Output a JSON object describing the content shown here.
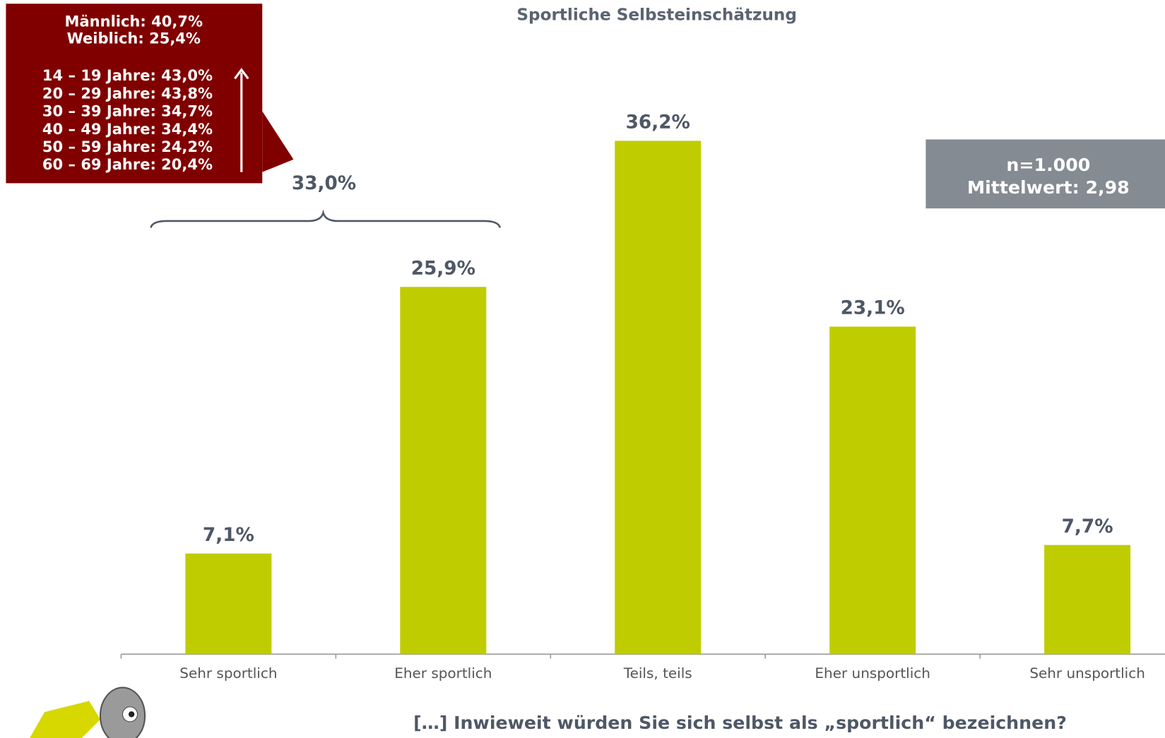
{
  "chart_data": {
    "type": "bar",
    "title": "Sportliche Selbsteinschätzung",
    "categories": [
      "Sehr sportlich",
      "Eher sportlich",
      "Teils, teils",
      "Eher unsportlich",
      "Sehr unsportlich"
    ],
    "values": [
      7.1,
      25.9,
      36.2,
      23.1,
      7.7
    ],
    "value_labels": [
      "7,1%",
      "25,9%",
      "36,2%",
      "23,1%",
      "7,7%"
    ],
    "color": "#bfcd00",
    "annotations": {
      "bracket_label": "33,0%",
      "callout_lines": [
        "Männlich: 40,7%",
        "Weiblich: 25,4%",
        "14 – 19 Jahre: 43,0%",
        "20 – 29 Jahre: 43,8%",
        "30 – 39 Jahre: 34,7%",
        "40 – 49 Jahre: 34,4%",
        "50 – 59 Jahre: 24,2%",
        "60 – 69 Jahre: 20,4%"
      ],
      "info_lines": [
        "n=1.000",
        "Mittelwert: 2,98"
      ]
    },
    "question": "[…] Inwieweit würden Sie sich selbst als „sportlich“ bezeichnen?"
  }
}
